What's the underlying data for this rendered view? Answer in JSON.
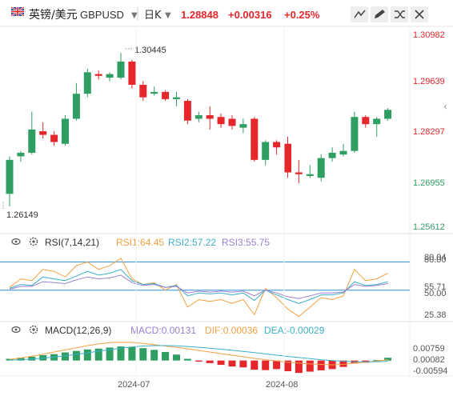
{
  "header": {
    "symbol_name": "英镑/美元",
    "symbol_code": "GBPUSD",
    "period": "日K",
    "price": "1.28848",
    "change": "+0.00316",
    "change_pct": "+0.25%"
  },
  "toolbar_icons": [
    "pen-icon",
    "edit-icon",
    "shuffle-icon",
    "close-icon"
  ],
  "colors": {
    "up": "#2e9e63",
    "down": "#e5262b",
    "price_text": "#e5262b",
    "axis_text": "#555555",
    "rsi1": "#f4a043",
    "rsi2": "#3cb0c9",
    "rsi3": "#9a7fd1",
    "macd": "#9a7fd1",
    "dif": "#f4a043",
    "dea": "#3cb0c9",
    "ref_line": "#2d8fd5"
  },
  "chart_data": [
    {
      "type": "candlestick",
      "y_ticks": [
        "1.30982",
        "1.29639",
        "1.28297",
        "1.26955",
        "1.25612"
      ],
      "ylim": [
        1.25612,
        1.30982
      ],
      "high_label": "1.30445",
      "low_label": "1.26149",
      "x_tick_labels": [
        "2024-07",
        "2024-08"
      ],
      "candles": [
        {
          "o": 1.265,
          "h": 1.2755,
          "l": 1.2615,
          "c": 1.2745
        },
        {
          "o": 1.2755,
          "h": 1.277,
          "l": 1.274,
          "c": 1.2765
        },
        {
          "o": 1.2765,
          "h": 1.288,
          "l": 1.276,
          "c": 1.283
        },
        {
          "o": 1.2825,
          "h": 1.285,
          "l": 1.2805,
          "c": 1.2815
        },
        {
          "o": 1.2815,
          "h": 1.2825,
          "l": 1.2785,
          "c": 1.2795
        },
        {
          "o": 1.279,
          "h": 1.287,
          "l": 1.2785,
          "c": 1.286
        },
        {
          "o": 1.286,
          "h": 1.296,
          "l": 1.2855,
          "c": 1.293
        },
        {
          "o": 1.293,
          "h": 1.3,
          "l": 1.292,
          "c": 1.299
        },
        {
          "o": 1.2985,
          "h": 1.2995,
          "l": 1.297,
          "c": 1.298
        },
        {
          "o": 1.2975,
          "h": 1.299,
          "l": 1.2965,
          "c": 1.2985
        },
        {
          "o": 1.2975,
          "h": 1.3044,
          "l": 1.297,
          "c": 1.302
        },
        {
          "o": 1.302,
          "h": 1.3025,
          "l": 1.2945,
          "c": 1.2955
        },
        {
          "o": 1.2955,
          "h": 1.2965,
          "l": 1.291,
          "c": 1.292
        },
        {
          "o": 1.293,
          "h": 1.295,
          "l": 1.2925,
          "c": 1.2935
        },
        {
          "o": 1.2935,
          "h": 1.294,
          "l": 1.291,
          "c": 1.2915
        },
        {
          "o": 1.2915,
          "h": 1.2935,
          "l": 1.2895,
          "c": 1.292
        },
        {
          "o": 1.291,
          "h": 1.2915,
          "l": 1.2845,
          "c": 1.2855
        },
        {
          "o": 1.286,
          "h": 1.288,
          "l": 1.285,
          "c": 1.287
        },
        {
          "o": 1.287,
          "h": 1.2895,
          "l": 1.283,
          "c": 1.286
        },
        {
          "o": 1.2865,
          "h": 1.2875,
          "l": 1.2835,
          "c": 1.2845
        },
        {
          "o": 1.286,
          "h": 1.287,
          "l": 1.283,
          "c": 1.284
        },
        {
          "o": 1.2835,
          "h": 1.286,
          "l": 1.282,
          "c": 1.2845
        },
        {
          "o": 1.286,
          "h": 1.2865,
          "l": 1.274,
          "c": 1.2745
        },
        {
          "o": 1.2745,
          "h": 1.28,
          "l": 1.273,
          "c": 1.2795
        },
        {
          "o": 1.2795,
          "h": 1.28,
          "l": 1.276,
          "c": 1.278
        },
        {
          "o": 1.279,
          "h": 1.281,
          "l": 1.2695,
          "c": 1.271
        },
        {
          "o": 1.271,
          "h": 1.2745,
          "l": 1.268,
          "c": 1.2705
        },
        {
          "o": 1.27,
          "h": 1.273,
          "l": 1.2695,
          "c": 1.2705
        },
        {
          "o": 1.2695,
          "h": 1.276,
          "l": 1.2685,
          "c": 1.275
        },
        {
          "o": 1.275,
          "h": 1.278,
          "l": 1.274,
          "c": 1.2765
        },
        {
          "o": 1.276,
          "h": 1.279,
          "l": 1.2755,
          "c": 1.277
        },
        {
          "o": 1.277,
          "h": 1.288,
          "l": 1.2765,
          "c": 1.2865
        },
        {
          "o": 1.2865,
          "h": 1.287,
          "l": 1.2835,
          "c": 1.2845
        },
        {
          "o": 1.2845,
          "h": 1.2865,
          "l": 1.281,
          "c": 1.286
        },
        {
          "o": 1.286,
          "h": 1.289,
          "l": 1.2855,
          "c": 1.2885
        }
      ]
    },
    {
      "type": "line",
      "name": "RSI(7,14,21)",
      "legend": [
        {
          "name": "RSI1",
          "value": "64.45"
        },
        {
          "name": "RSI2",
          "value": "57.22"
        },
        {
          "name": "RSI3",
          "value": "55.75"
        }
      ],
      "y_tick_labels": [
        "80.04",
        "80.00",
        "55.71",
        "50.00",
        "25.38"
      ],
      "ylim": [
        20,
        88
      ],
      "ref_levels": [
        80,
        50
      ],
      "series": [
        {
          "name": "RSI1",
          "values": [
            53,
            62,
            60,
            72,
            70,
            64,
            76,
            80,
            72,
            76,
            84,
            62,
            56,
            58,
            50,
            56,
            32,
            40,
            38,
            40,
            36,
            40,
            24,
            52,
            42,
            30,
            22,
            32,
            42,
            40,
            44,
            72,
            60,
            62,
            68
          ]
        },
        {
          "name": "RSI2",
          "values": [
            52,
            56,
            55,
            64,
            62,
            60,
            65,
            70,
            66,
            68,
            72,
            60,
            56,
            57,
            53,
            55,
            44,
            47,
            46,
            47,
            45,
            47,
            39,
            50,
            45,
            40,
            36,
            40,
            45,
            45,
            47,
            59,
            55,
            56,
            59
          ]
        },
        {
          "name": "RSI3",
          "values": [
            51,
            54,
            54,
            59,
            58,
            57,
            61,
            64,
            62,
            63,
            66,
            58,
            55,
            56,
            53,
            54,
            47,
            49,
            48,
            49,
            48,
            49,
            44,
            50,
            47,
            43,
            41,
            44,
            47,
            47,
            48,
            56,
            54,
            55,
            57
          ]
        }
      ]
    },
    {
      "type": "bar",
      "name": "MACD(12,26,9)",
      "legend": [
        {
          "name": "MACD",
          "value": "0.00131"
        },
        {
          "name": "DIF",
          "value": "0.00036"
        },
        {
          "name": "DEA",
          "value": "-0.00029"
        }
      ],
      "y_tick_labels": [
        "0.00759",
        "0.00082",
        "-0.00594"
      ],
      "ylim": [
        -0.0065,
        0.0085
      ],
      "histogram": [
        0.0008,
        0.0013,
        0.0018,
        0.0025,
        0.003,
        0.0038,
        0.0045,
        0.0052,
        0.0056,
        0.0061,
        0.0066,
        0.0064,
        0.0058,
        0.005,
        0.004,
        0.0028,
        0.0008,
        -0.0005,
        -0.0012,
        -0.002,
        -0.0028,
        -0.0032,
        -0.0043,
        -0.0045,
        -0.004,
        -0.005,
        -0.0058,
        -0.0052,
        -0.0046,
        -0.004,
        -0.003,
        -0.0014,
        -0.001,
        0.0002,
        0.0013
      ],
      "series": [
        {
          "name": "DIF",
          "values": [
            0.0006,
            0.0012,
            0.002,
            0.003,
            0.004,
            0.005,
            0.006,
            0.007,
            0.0078,
            0.0084,
            0.0086,
            0.0085,
            0.008,
            0.0074,
            0.0068,
            0.0062,
            0.0055,
            0.0047,
            0.004,
            0.0032,
            0.0025,
            0.0018,
            0.001,
            0.0004,
            -0.0002,
            -0.0008,
            -0.0012,
            -0.0016,
            -0.0018,
            -0.002,
            -0.0018,
            -0.0012,
            -0.0008,
            -0.0002,
            0.0004
          ]
        },
        {
          "name": "DEA",
          "values": [
            0.0002,
            0.0004,
            0.0007,
            0.0011,
            0.0016,
            0.0022,
            0.0029,
            0.0036,
            0.0044,
            0.0051,
            0.0058,
            0.0064,
            0.0068,
            0.007,
            0.007,
            0.0069,
            0.0066,
            0.0062,
            0.0058,
            0.0053,
            0.0048,
            0.0043,
            0.0037,
            0.0031,
            0.0025,
            0.0019,
            0.0014,
            0.0009,
            0.0004,
            0.0,
            -0.0003,
            -0.0006,
            -0.0006,
            -0.0006,
            -0.0003
          ]
        }
      ]
    }
  ]
}
